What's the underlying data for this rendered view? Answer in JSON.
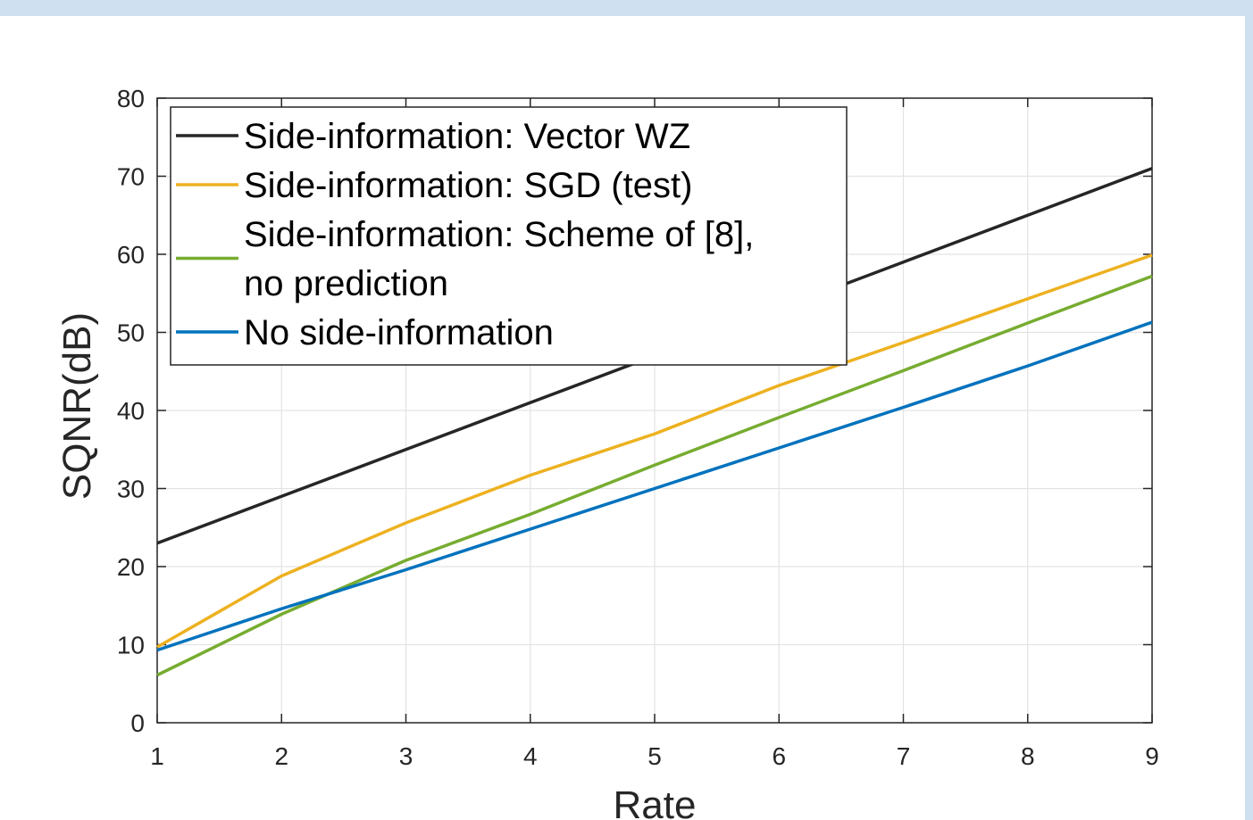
{
  "chart_data": {
    "type": "line",
    "xlabel": "Rate",
    "ylabel": "SQNR(dB)",
    "xlim": [
      1,
      9
    ],
    "ylim": [
      0,
      80
    ],
    "xticks": [
      1,
      2,
      3,
      4,
      5,
      6,
      7,
      8,
      9
    ],
    "yticks": [
      0,
      10,
      20,
      30,
      40,
      50,
      60,
      70,
      80
    ],
    "grid": true,
    "legend_position": "top-left",
    "x": [
      1,
      2,
      3,
      4,
      5,
      6,
      7,
      8,
      9
    ],
    "series": [
      {
        "name": "Side-information: Vector WZ",
        "legend_lines": [
          "Side-information: Vector WZ"
        ],
        "color": "#262626",
        "values": [
          23.0,
          29.0,
          35.0,
          41.0,
          47.0,
          53.0,
          59.0,
          65.0,
          71.0
        ]
      },
      {
        "name": "Side-information: SGD (test)",
        "legend_lines": [
          "Side-information: SGD (test)"
        ],
        "color": "#EDB120",
        "values": [
          9.7,
          18.8,
          25.6,
          31.7,
          37.0,
          43.2,
          48.7,
          54.3,
          59.9
        ]
      },
      {
        "name": "Side-information: Scheme of [8], no prediction",
        "legend_lines": [
          "Side-information: Scheme of [8],",
          "no prediction"
        ],
        "color": "#77AC30",
        "values": [
          6.1,
          13.9,
          20.8,
          26.7,
          33.0,
          39.1,
          45.1,
          51.2,
          57.2
        ]
      },
      {
        "name": "No side-information",
        "legend_lines": [
          "No side-information"
        ],
        "color": "#0072BD",
        "values": [
          9.3,
          14.6,
          19.6,
          24.8,
          30.0,
          35.2,
          40.4,
          45.7,
          51.3
        ]
      }
    ]
  }
}
